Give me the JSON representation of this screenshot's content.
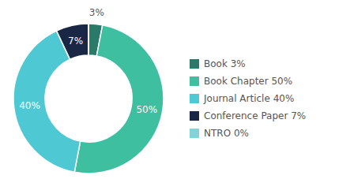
{
  "chart_data": {
    "type": "pie",
    "categories": [
      "Book 3%",
      "Book Chapter 50%",
      "Journal Article 40%",
      "Conference Paper 7%",
      "NTRO 0%"
    ],
    "values": [
      3,
      50,
      40,
      7,
      0.001
    ],
    "value_labels": [
      "3%",
      "50%",
      "40%",
      "7%",
      null
    ],
    "colors": [
      "#2a7a6a",
      "#3dbfa0",
      "#4ec9d4",
      "#1a2744",
      "#7fd4d8"
    ],
    "data_labels": true,
    "legend": "right"
  }
}
